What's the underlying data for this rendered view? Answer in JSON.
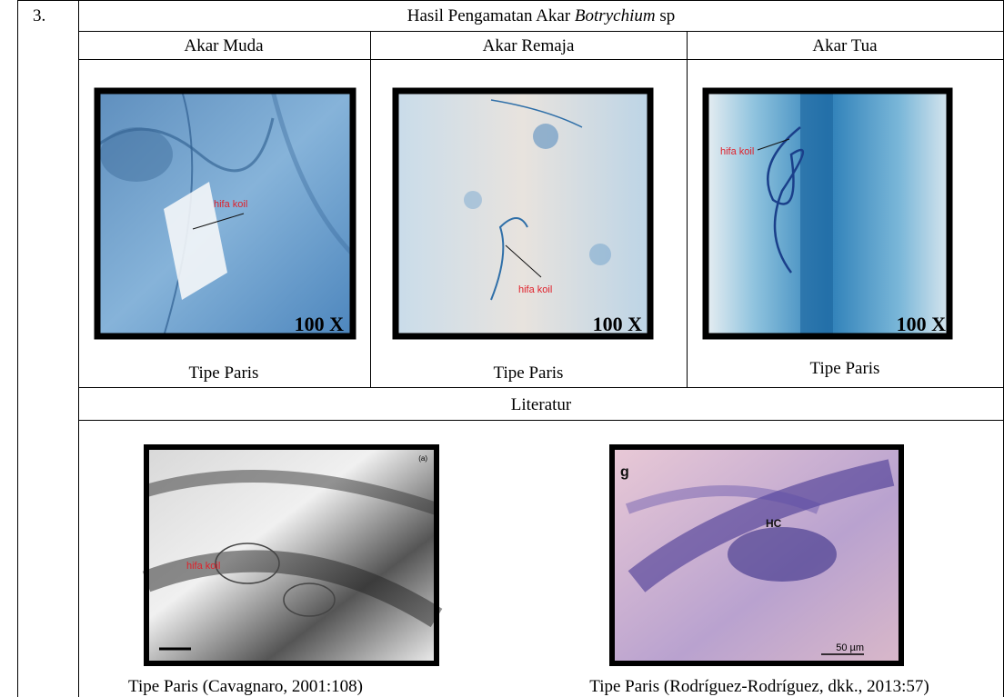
{
  "row_number": "3.",
  "title": {
    "text": "Hasil Pengamatan Akar ",
    "italic": "Botrychium",
    "suffix": " sp"
  },
  "columns": [
    {
      "header": "Akar Muda",
      "caption": "Tipe Paris",
      "magnification": "100 X",
      "annotation": "hifa koil"
    },
    {
      "header": "Akar Remaja",
      "caption": "Tipe Paris",
      "magnification": "100 X",
      "annotation": "hifa koil"
    },
    {
      "header": "Akar Tua",
      "caption": "Tipe Paris",
      "magnification": "100 X",
      "annotation": "hifa koil"
    }
  ],
  "literature": {
    "heading": "Literatur",
    "items": [
      {
        "caption": "Tipe Paris (Cavagnaro, 2001:108)",
        "labels": [
          "(a)",
          "hifa koil"
        ]
      },
      {
        "caption": "Tipe Paris (Rodríguez-Rodríguez, dkk., 2013:57)",
        "labels": [
          "g",
          "HC",
          "50 µm"
        ]
      }
    ]
  }
}
